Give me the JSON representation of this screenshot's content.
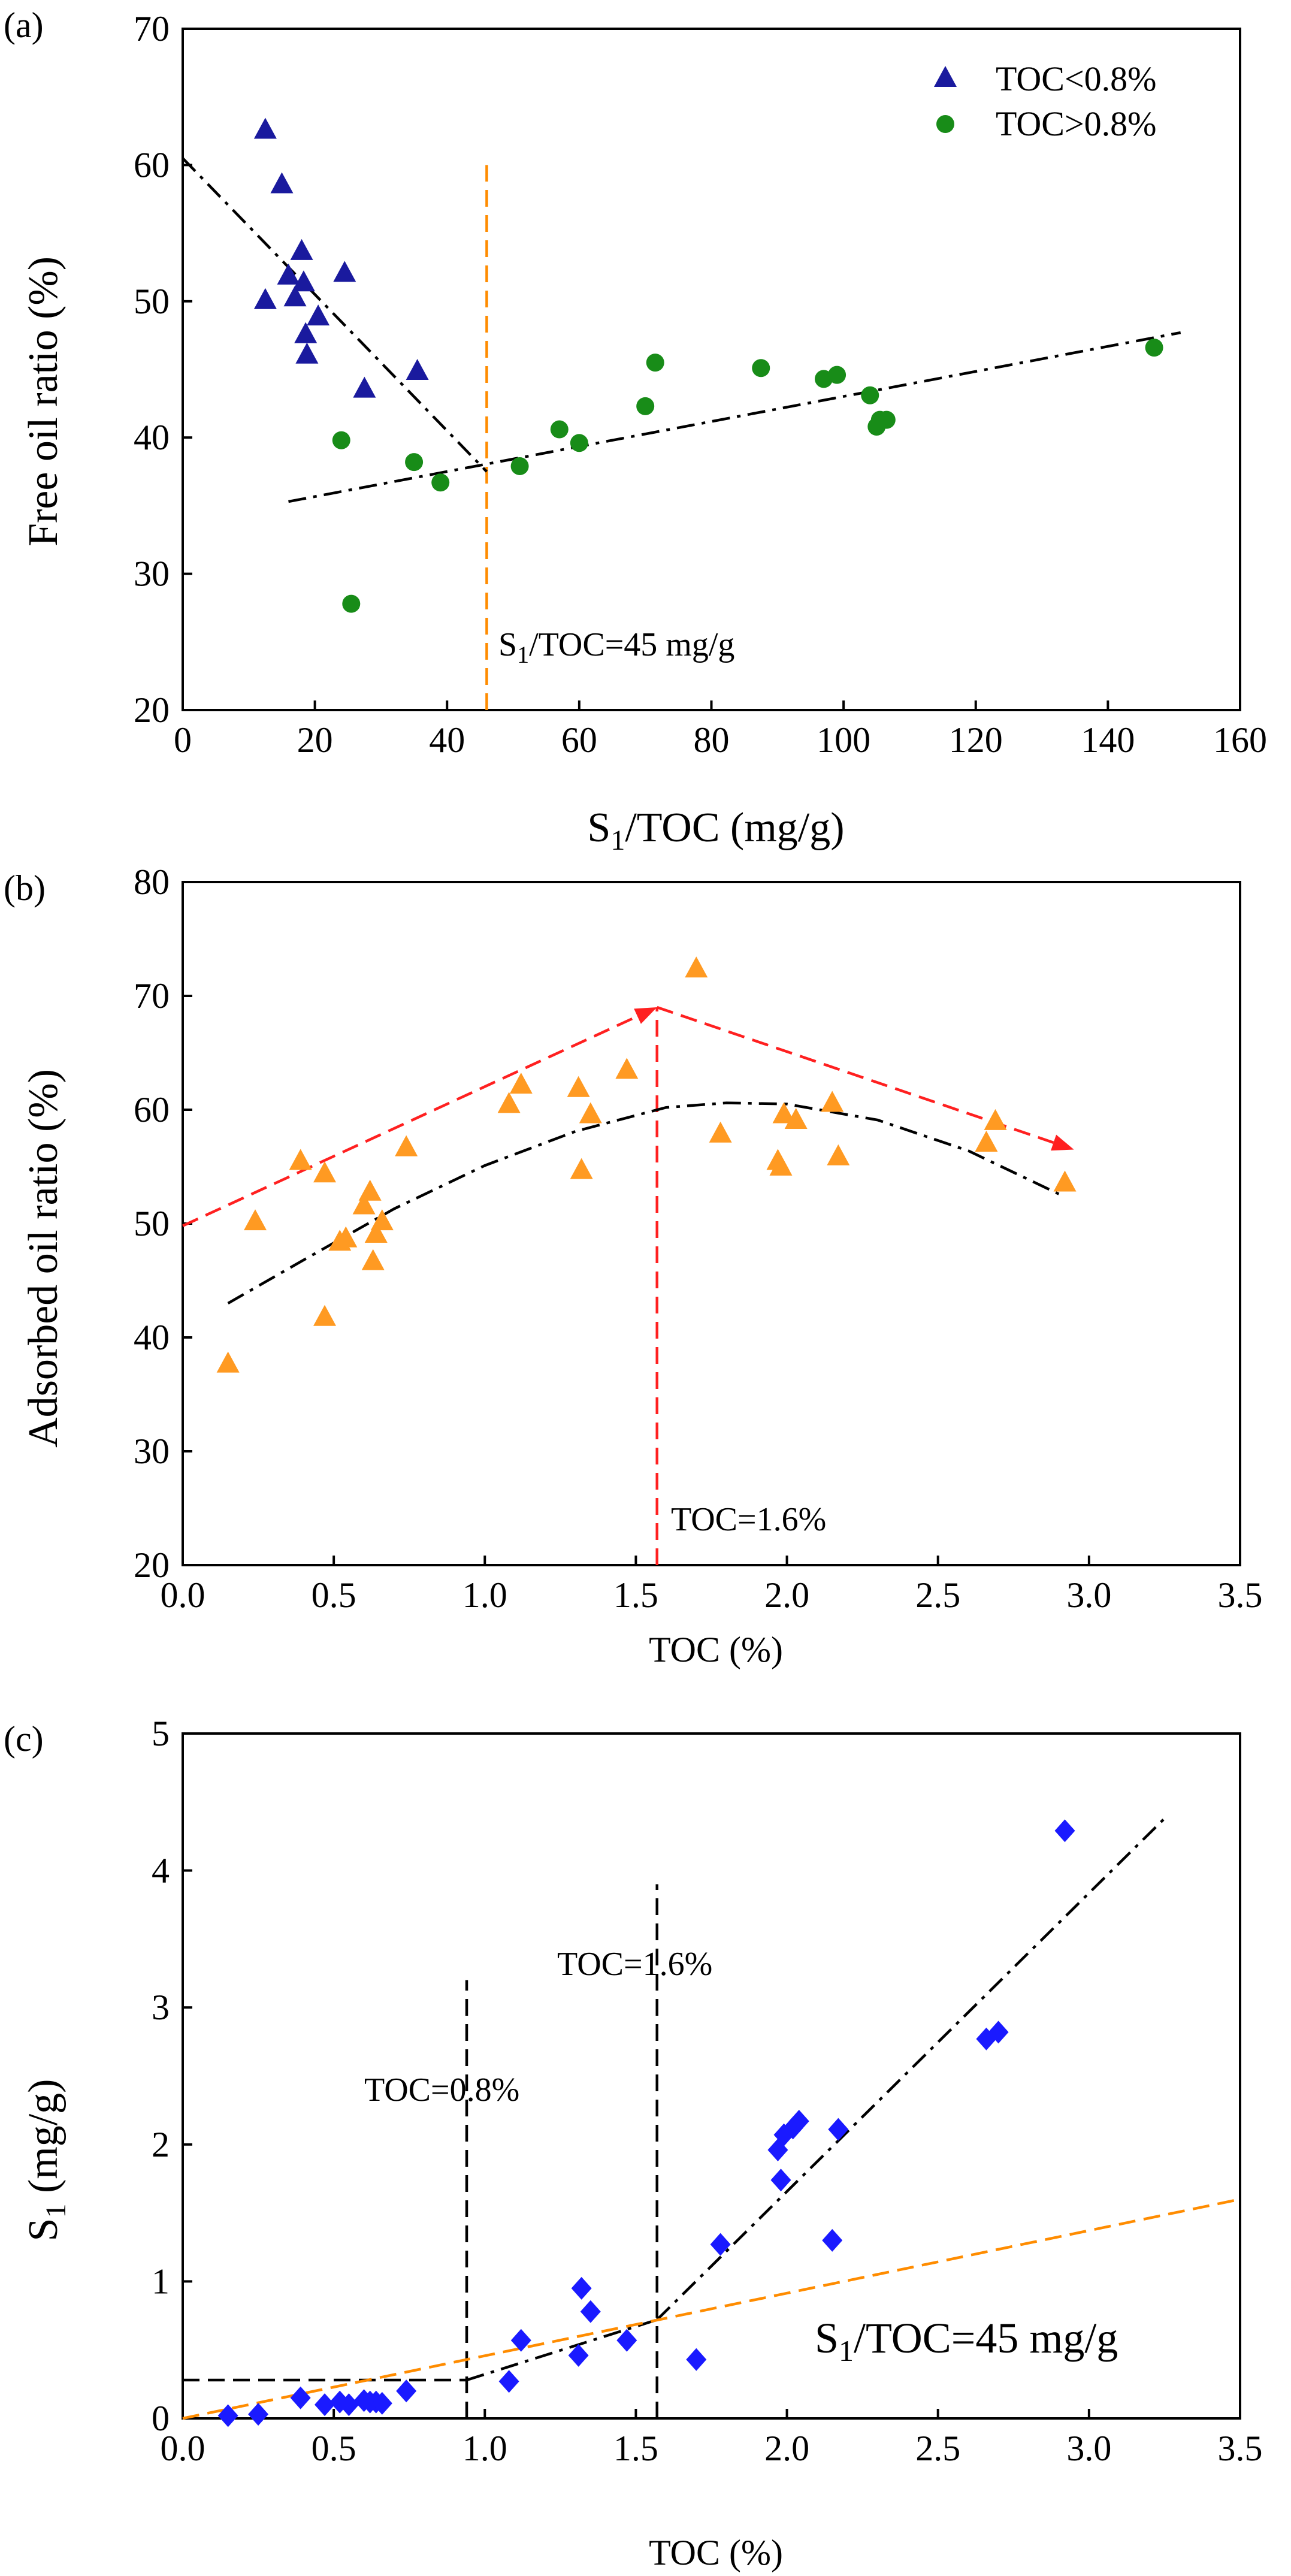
{
  "chart_data": [
    {
      "type": "scatter",
      "panel_label": "(a)",
      "xlabel_main": "S",
      "xlabel_sub": "1",
      "xlabel_rest": "/TOC (mg/g)",
      "ylabel": "Free oil ratio (%)",
      "xlim": [
        0,
        160
      ],
      "ylim": [
        20,
        70
      ],
      "xticks": [
        "0",
        "20",
        "40",
        "60",
        "80",
        "100",
        "120",
        "140",
        "160"
      ],
      "yticks": [
        "20",
        "30",
        "40",
        "50",
        "60",
        "70"
      ],
      "legend_position": "top-right",
      "series": [
        {
          "name": "TOC<0.8%",
          "marker": "triangle",
          "color": "#1a1a9e",
          "points": [
            [
              12.5,
              62.5
            ],
            [
              15,
              58.5
            ],
            [
              16,
              51.8
            ],
            [
              17,
              50.2
            ],
            [
              18,
              53.6
            ],
            [
              18.3,
              51.3
            ],
            [
              18.6,
              47.5
            ],
            [
              18.8,
              46
            ],
            [
              20.5,
              48.8
            ],
            [
              12.5,
              50
            ],
            [
              24.5,
              52
            ],
            [
              27.5,
              43.5
            ],
            [
              35.5,
              44.8
            ]
          ]
        },
        {
          "name": "TOC>0.8%",
          "marker": "circle",
          "color": "#188c18",
          "points": [
            [
              24,
              39.8
            ],
            [
              25.5,
              27.8
            ],
            [
              35,
              38.2
            ],
            [
              39,
              36.7
            ],
            [
              51,
              37.9
            ],
            [
              57,
              40.6
            ],
            [
              60,
              39.6
            ],
            [
              70,
              42.3
            ],
            [
              71.5,
              45.5
            ],
            [
              87.5,
              45.1
            ],
            [
              97,
              44.3
            ],
            [
              99,
              44.6
            ],
            [
              104,
              43.1
            ],
            [
              105,
              40.8
            ],
            [
              105.5,
              41.3
            ],
            [
              106.5,
              41.3
            ],
            [
              147,
              46.6
            ]
          ]
        }
      ],
      "trend_lines": [
        {
          "name": "TOC<0.8% trend",
          "color": "#000000",
          "style": "dashdot",
          "x": [
            0,
            46
          ],
          "y": [
            60.5,
            37.5
          ]
        },
        {
          "name": "TOC>0.8% trend",
          "color": "#000000",
          "style": "dashdot",
          "x": [
            16,
            151
          ],
          "y": [
            35.3,
            47.7
          ]
        }
      ],
      "vlines": [
        {
          "x": 46,
          "y": [
            20,
            60
          ],
          "color": "#ff8c00",
          "style": "dashed"
        }
      ],
      "annotations": [
        {
          "text_main": "S",
          "text_sub": "1",
          "text_rest": "/TOC=45 mg/g",
          "x": 47.5,
          "y": 24.5
        }
      ]
    },
    {
      "type": "scatter",
      "panel_label": "(b)",
      "xlabel": "TOC (%)",
      "ylabel": "Adsorbed oil ratio (%)",
      "xlim": [
        0,
        3.5
      ],
      "ylim": [
        20,
        80
      ],
      "xticks": [
        "0.0",
        "0.5",
        "1.0",
        "1.5",
        "2.0",
        "2.5",
        "3.0",
        "3.5"
      ],
      "yticks": [
        "20",
        "30",
        "40",
        "50",
        "60",
        "70",
        "80"
      ],
      "series": [
        {
          "name": "Adsorbed oil ratio",
          "marker": "triangle",
          "color": "#ff9a22",
          "points": [
            [
              0.15,
              37.6
            ],
            [
              0.24,
              50.1
            ],
            [
              0.39,
              55.4
            ],
            [
              0.47,
              54.3
            ],
            [
              0.47,
              41.7
            ],
            [
              0.52,
              48.3
            ],
            [
              0.54,
              48.6
            ],
            [
              0.6,
              51.5
            ],
            [
              0.62,
              52.7
            ],
            [
              0.63,
              46.6
            ],
            [
              0.64,
              49
            ],
            [
              0.66,
              50.1
            ],
            [
              0.74,
              56.6
            ],
            [
              1.08,
              60.4
            ],
            [
              1.12,
              62.1
            ],
            [
              1.31,
              61.8
            ],
            [
              1.32,
              54.6
            ],
            [
              1.35,
              59.5
            ],
            [
              1.47,
              63.4
            ],
            [
              1.7,
              72.3
            ],
            [
              1.78,
              57.8
            ],
            [
              1.97,
              55.4
            ],
            [
              1.98,
              54.9
            ],
            [
              1.99,
              59.5
            ],
            [
              2.03,
              59
            ],
            [
              2.15,
              60.5
            ],
            [
              2.17,
              55.8
            ],
            [
              2.66,
              57
            ],
            [
              2.69,
              58.9
            ],
            [
              2.92,
              53.5
            ]
          ]
        }
      ],
      "trend_lines": [
        {
          "name": "polynomial fit",
          "color": "#000000",
          "style": "dashdot",
          "x": [
            0.15,
            0.4,
            0.7,
            1.0,
            1.3,
            1.6,
            1.8,
            2.0,
            2.3,
            2.6,
            2.9
          ],
          "y": [
            43,
            46.8,
            51.3,
            55.1,
            58.1,
            60.2,
            60.6,
            60.5,
            59.1,
            56.4,
            52.6
          ]
        }
      ],
      "arrows": [
        {
          "color": "#ff2020",
          "style": "dashed",
          "from": [
            0,
            49.8
          ],
          "to": [
            1.57,
            69
          ]
        },
        {
          "color": "#ff2020",
          "style": "dashed",
          "from": [
            1.57,
            69
          ],
          "to": [
            2.95,
            56.5
          ]
        }
      ],
      "vlines": [
        {
          "x": 1.57,
          "y": [
            20,
            69
          ],
          "color": "#ff2020",
          "style": "dashed"
        }
      ],
      "annotations": [
        {
          "text": "TOC=1.6%",
          "x": 1.6,
          "y": 24.5
        }
      ]
    },
    {
      "type": "scatter",
      "panel_label": "(c)",
      "xlabel": "TOC (%)",
      "ylabel_main": "S",
      "ylabel_sub": "1",
      "ylabel_rest": " (mg/g)",
      "xlim": [
        0,
        3.5
      ],
      "ylim": [
        0,
        5
      ],
      "xticks": [
        "0.0",
        "0.5",
        "1.0",
        "1.5",
        "2.0",
        "2.5",
        "3.0",
        "3.5"
      ],
      "yticks": [
        "0",
        "1",
        "2",
        "3",
        "4",
        "5"
      ],
      "series": [
        {
          "name": "S1",
          "marker": "diamond",
          "color": "#1a1aff",
          "points": [
            [
              0.15,
              0.02
            ],
            [
              0.25,
              0.03
            ],
            [
              0.39,
              0.15
            ],
            [
              0.47,
              0.1
            ],
            [
              0.52,
              0.12
            ],
            [
              0.55,
              0.1
            ],
            [
              0.6,
              0.13
            ],
            [
              0.62,
              0.12
            ],
            [
              0.64,
              0.12
            ],
            [
              0.66,
              0.11
            ],
            [
              0.74,
              0.2
            ],
            [
              1.08,
              0.27
            ],
            [
              1.12,
              0.57
            ],
            [
              1.31,
              0.46
            ],
            [
              1.32,
              0.95
            ],
            [
              1.35,
              0.78
            ],
            [
              1.47,
              0.57
            ],
            [
              1.7,
              0.43
            ],
            [
              1.78,
              1.27
            ],
            [
              1.97,
              1.96
            ],
            [
              1.98,
              1.74
            ],
            [
              1.99,
              2.07
            ],
            [
              2.02,
              2.12
            ],
            [
              2.04,
              2.17
            ],
            [
              2.15,
              1.3
            ],
            [
              2.17,
              2.11
            ],
            [
              2.66,
              2.77
            ],
            [
              2.7,
              2.82
            ],
            [
              2.92,
              4.29
            ]
          ]
        }
      ],
      "trend_lines": [
        {
          "name": "low-TOC plateau",
          "color": "#000000",
          "style": "dashed",
          "x": [
            0,
            0.94
          ],
          "y": [
            0.28,
            0.28
          ]
        },
        {
          "name": "mid segment",
          "color": "#000000",
          "style": "dashdot",
          "x": [
            0.94,
            1.57
          ],
          "y": [
            0.28,
            0.72
          ]
        },
        {
          "name": "high-TOC trend",
          "color": "#000000",
          "style": "dashdot",
          "x": [
            1.57,
            3.25
          ],
          "y": [
            0.72,
            4.38
          ]
        },
        {
          "name": "S1/TOC=45 mg/g line",
          "color": "#ff8c00",
          "style": "dashed",
          "x": [
            0,
            3.5
          ],
          "y": [
            0,
            1.6
          ]
        }
      ],
      "vlines": [
        {
          "x": 0.94,
          "y": [
            0,
            3.2
          ],
          "color": "#000000",
          "style": "dashed"
        },
        {
          "x": 1.57,
          "y": [
            0,
            3.9
          ],
          "color": "#000000",
          "style": "dashed"
        }
      ],
      "annotations": [
        {
          "text": "TOC=0.8%",
          "x": 0.62,
          "y": 3.3
        },
        {
          "text": "TOC=1.6%",
          "x": 1.25,
          "y": 3.96
        }
      ],
      "big_annotation": {
        "text_main": "S",
        "text_sub": "1",
        "text_rest": "/TOC=45 mg/g",
        "x": 2.1,
        "y": 0.7
      }
    }
  ]
}
